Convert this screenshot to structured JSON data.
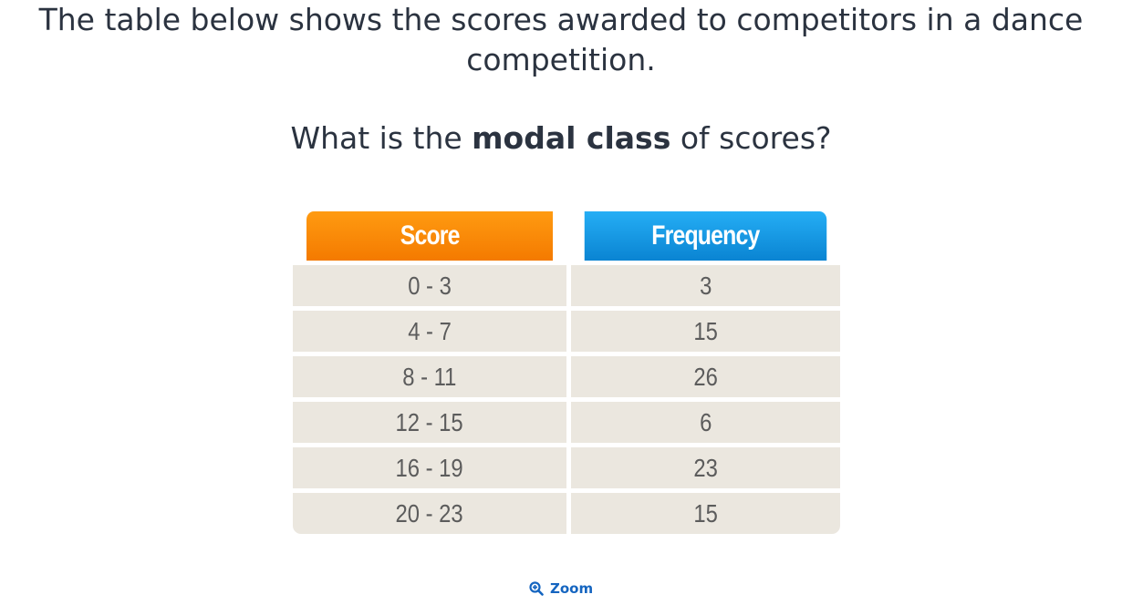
{
  "question": {
    "intro": "The table below shows the scores awarded to competitors in a dance competition.",
    "prompt_before": "What is the ",
    "prompt_bold": "modal class",
    "prompt_after": " of scores?"
  },
  "table": {
    "headers": {
      "score": "Score",
      "frequency": "Frequency"
    },
    "rows": [
      {
        "score": "0 - 3",
        "frequency": "3"
      },
      {
        "score": "4 - 7",
        "frequency": "15"
      },
      {
        "score": "8 - 11",
        "frequency": "26"
      },
      {
        "score": "12 - 15",
        "frequency": "6"
      },
      {
        "score": "16 - 19",
        "frequency": "23"
      },
      {
        "score": "20 - 23",
        "frequency": "15"
      }
    ],
    "colors": {
      "score_header": "#f47a00",
      "frequency_header": "#0a84d2",
      "cell_bg": "#ebe7df"
    }
  },
  "zoom": {
    "label": "Zoom",
    "icon": "zoom-in-icon",
    "color": "#1565c0"
  }
}
